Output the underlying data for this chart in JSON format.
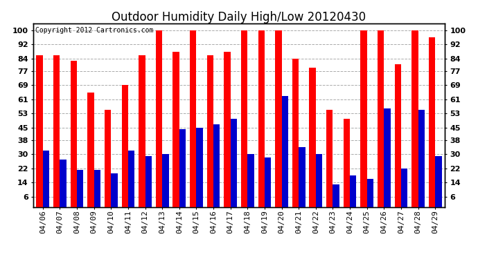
{
  "title": "Outdoor Humidity Daily High/Low 20120430",
  "copyright_text": "Copyright 2012 Cartronics.com",
  "dates": [
    "04/06",
    "04/07",
    "04/08",
    "04/09",
    "04/10",
    "04/11",
    "04/12",
    "04/13",
    "04/14",
    "04/15",
    "04/16",
    "04/17",
    "04/18",
    "04/19",
    "04/20",
    "04/21",
    "04/22",
    "04/23",
    "04/24",
    "04/25",
    "04/26",
    "04/27",
    "04/28",
    "04/29"
  ],
  "highs": [
    86,
    86,
    83,
    65,
    55,
    69,
    86,
    100,
    88,
    100,
    86,
    88,
    100,
    100,
    100,
    84,
    79,
    55,
    50,
    100,
    100,
    81,
    100,
    96
  ],
  "lows": [
    32,
    27,
    21,
    21,
    19,
    32,
    29,
    30,
    44,
    45,
    47,
    50,
    30,
    28,
    63,
    34,
    30,
    13,
    18,
    16,
    56,
    22,
    55,
    29
  ],
  "high_color": "#ff0000",
  "low_color": "#0000cc",
  "bg_color": "#ffffff",
  "plot_bg_color": "#ffffff",
  "grid_color": "#aaaaaa",
  "yticks": [
    6,
    14,
    22,
    30,
    38,
    45,
    53,
    61,
    69,
    77,
    84,
    92,
    100
  ],
  "ymin": 0,
  "ymax": 104,
  "bar_width": 0.38,
  "title_fontsize": 12,
  "tick_fontsize": 8,
  "copyright_fontsize": 7,
  "fig_width": 6.9,
  "fig_height": 3.75,
  "dpi": 100
}
